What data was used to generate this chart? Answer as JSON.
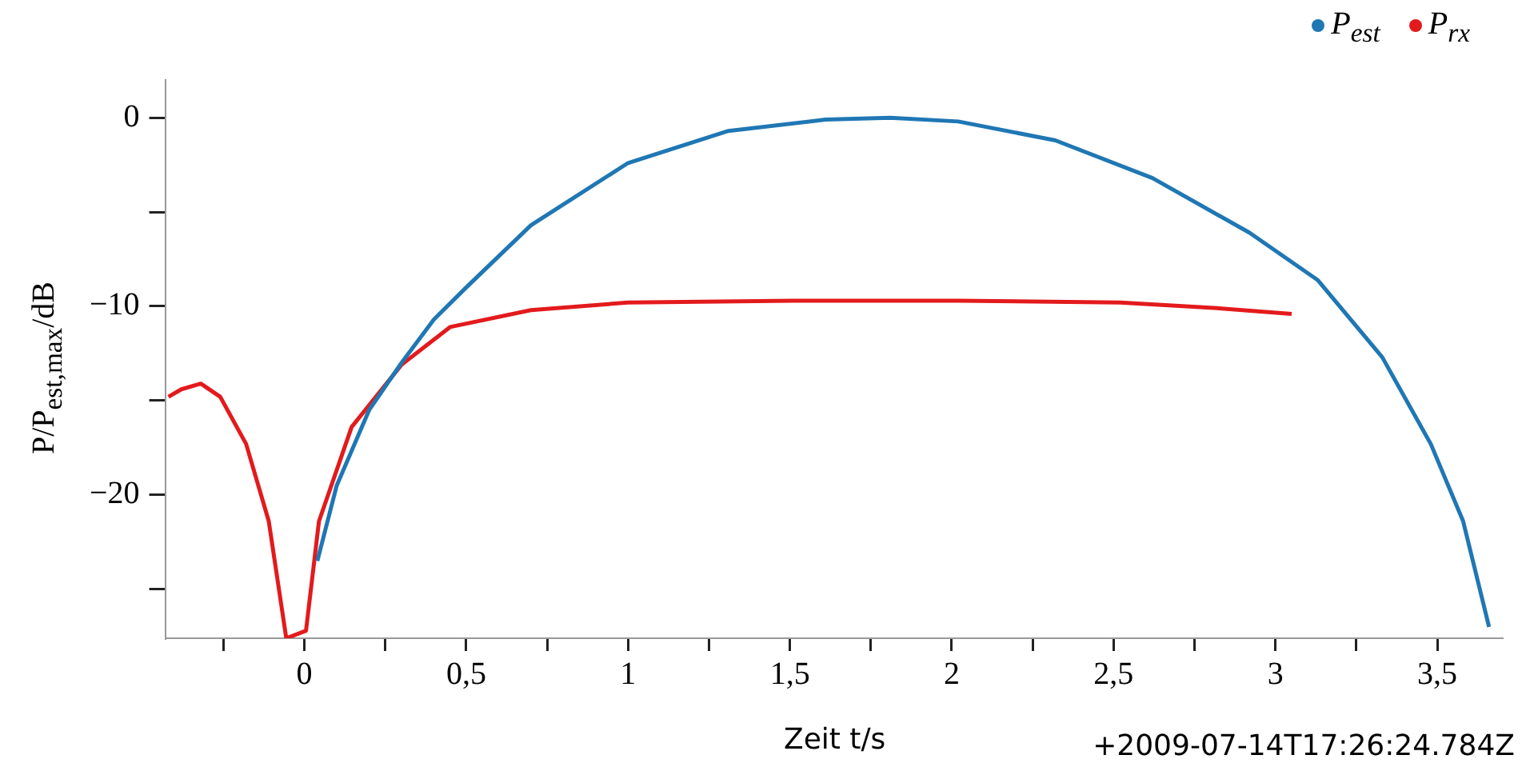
{
  "chart_data": {
    "type": "line",
    "xlabel": "Zeit t/s",
    "ylabel": "P/P$_{est,max}$/dB",
    "annotations": [
      "+2009-07-14T17:26:24.784Z"
    ],
    "legend": "top right",
    "marker": "none",
    "grid": false,
    "xlim": [
      -0.43,
      3.7
    ],
    "ylim": [
      -27.6,
      2
    ],
    "xticks": [
      {
        "value": -0.25,
        "label": null
      },
      0,
      {
        "value": 0.25,
        "label": null
      },
      {
        "value": 0.5,
        "label": "0,5"
      },
      {
        "value": 0.75,
        "label": null
      },
      1,
      {
        "value": 1.25,
        "label": null
      },
      {
        "value": 1.5,
        "label": "1,5"
      },
      {
        "value": 1.75,
        "label": null
      },
      2,
      {
        "value": 2.25,
        "label": null
      },
      {
        "value": 2.5,
        "label": "2,5"
      },
      {
        "value": 2.75,
        "label": null
      },
      3,
      {
        "value": 3.25,
        "label": null
      },
      {
        "value": 3.5,
        "label": "3,5"
      }
    ],
    "yticks": [
      {
        "value": -25,
        "label": null
      },
      {
        "value": -20,
        "label": "−20"
      },
      {
        "value": -15,
        "label": null
      },
      {
        "value": -10,
        "label": "−10"
      },
      {
        "value": -5,
        "label": null
      },
      0
    ],
    "series": [
      {
        "name": "P$_{est}$",
        "color": "#1f77b4",
        "x": [
          0.04,
          0.1,
          0.2,
          0.3,
          0.4,
          0.5,
          0.7,
          1.0,
          1.31,
          1.61,
          1.81,
          2.02,
          2.32,
          2.62,
          2.92,
          3.13,
          3.33,
          3.48,
          3.58,
          3.66
        ],
        "values": [
          -23.5,
          -19.5,
          -15.5,
          -13,
          -10.7,
          -9,
          -5.7,
          -2.4,
          -0.7,
          -0.1,
          0,
          -0.2,
          -1.2,
          -3.2,
          -6.1,
          -8.6,
          -12.7,
          -17.3,
          -21.4,
          -27
        ]
      },
      {
        "name": "P$_{rx}$",
        "color": "#e31a1c",
        "x": [
          -0.42,
          -0.38,
          -0.32,
          -0.26,
          -0.18,
          -0.11,
          -0.056,
          0.005,
          0.045,
          0.146,
          0.3,
          0.45,
          0.7,
          1.0,
          1.51,
          2.02,
          2.52,
          2.82,
          3.05
        ],
        "values": [
          -14.8,
          -14.4,
          -14.1,
          -14.8,
          -17.3,
          -21.4,
          -27.6,
          -27.2,
          -21.4,
          -16.4,
          -13.1,
          -11.1,
          -10.2,
          -9.8,
          -9.7,
          -9.7,
          -9.8,
          -10.1,
          -10.4
        ]
      }
    ]
  }
}
